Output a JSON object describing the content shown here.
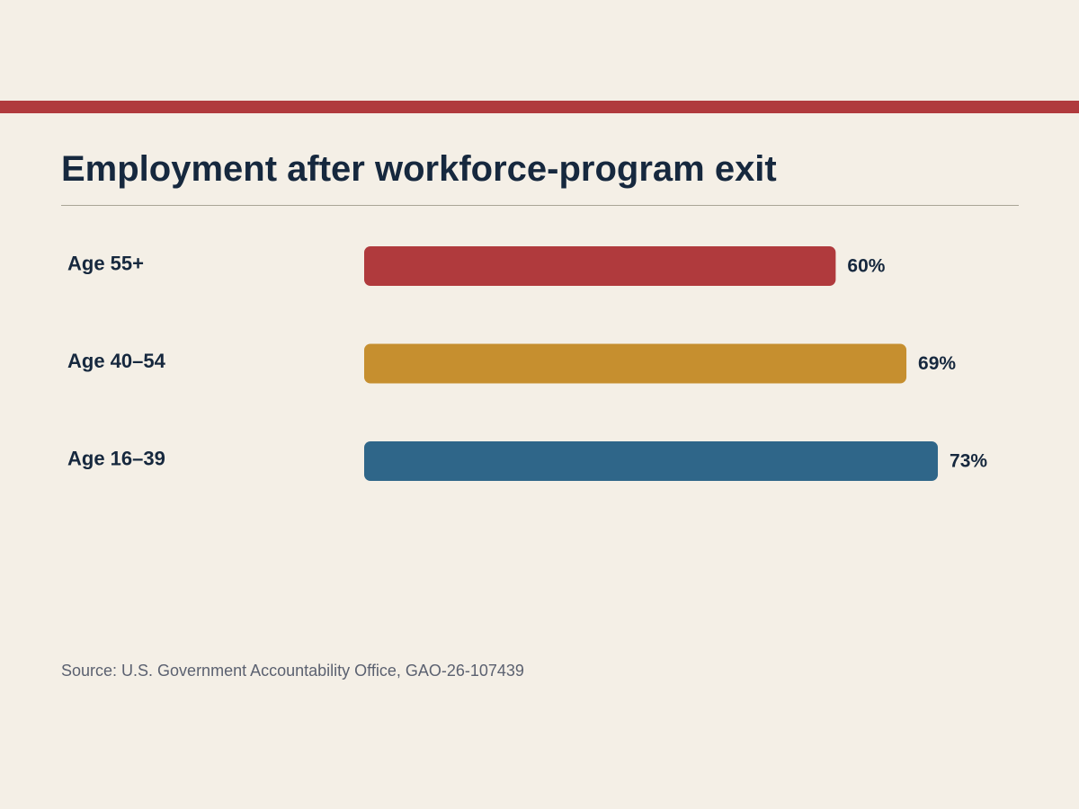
{
  "title": "Employment after workforce-program exit",
  "source": "Source: U.S. Government Accountability Office, GAO-26-107439",
  "colors": {
    "accent_rule": "#b03a3d",
    "text_dark": "#16283e",
    "background": "#f4efe6"
  },
  "chart_data": {
    "type": "bar",
    "orientation": "horizontal",
    "title": "Employment after workforce-program exit",
    "categories": [
      "Age 55+",
      "Age 40–54",
      "Age 16–39"
    ],
    "values": [
      60,
      69,
      73
    ],
    "value_labels": [
      "60%",
      "69%",
      "73%"
    ],
    "colors": [
      "#b03a3d",
      "#c68f2f",
      "#2f6689"
    ],
    "xlim": [
      0,
      100
    ],
    "grid": false,
    "legend": "none"
  }
}
